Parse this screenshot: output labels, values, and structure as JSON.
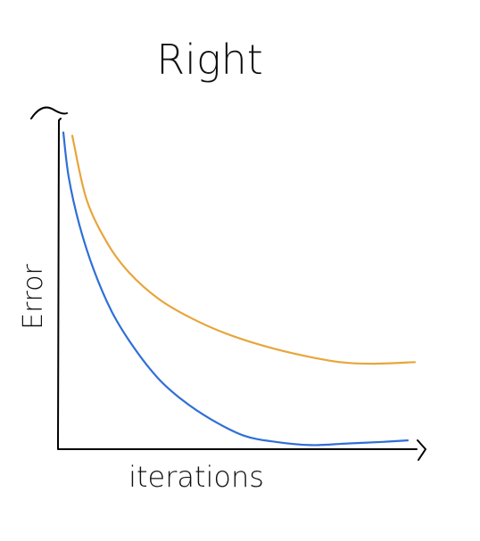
{
  "chart_data": {
    "type": "line",
    "title": "Right",
    "xlabel": "iterations",
    "ylabel": "Error",
    "xlim": [
      0,
      10
    ],
    "ylim": [
      0,
      10
    ],
    "x_ticks_labeled": false,
    "y_ticks_labeled": false,
    "grid": false,
    "legend": "none",
    "axis_color": "#000000",
    "series": [
      {
        "color": "#e8a53a",
        "x": [
          0.4,
          0.8,
          1.4,
          2.0,
          2.8,
          3.7,
          4.7,
          5.8,
          6.9,
          7.9,
          8.8,
          10.0
        ],
        "y": [
          9.8,
          7.8,
          6.4,
          5.5,
          4.7,
          4.1,
          3.6,
          3.2,
          2.9,
          2.7,
          2.65,
          2.7
        ]
      },
      {
        "color": "#2f6fd6",
        "x": [
          0.15,
          0.3,
          0.6,
          1.0,
          1.5,
          2.1,
          2.8,
          3.5,
          4.3,
          5.2,
          6.1,
          7.1,
          8.1,
          9.1,
          9.8
        ],
        "y": [
          9.9,
          8.5,
          7.0,
          5.6,
          4.3,
          3.2,
          2.2,
          1.5,
          0.9,
          0.4,
          0.2,
          0.1,
          0.15,
          0.2,
          0.25
        ]
      }
    ]
  }
}
